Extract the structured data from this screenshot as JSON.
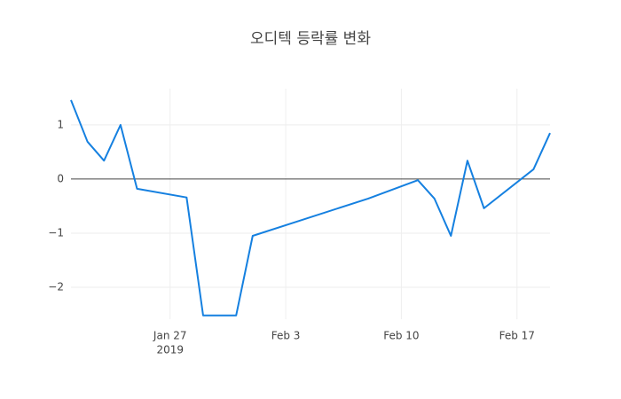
{
  "chart_data": {
    "type": "line",
    "title": "오디텍 등락률 변화",
    "x": [
      "2019-01-21",
      "2019-01-22",
      "2019-01-23",
      "2019-01-24",
      "2019-01-25",
      "2019-01-28",
      "2019-01-29",
      "2019-01-31",
      "2019-02-01",
      "2019-02-08",
      "2019-02-11",
      "2019-02-12",
      "2019-02-13",
      "2019-02-14",
      "2019-02-15",
      "2019-02-18",
      "2019-02-19"
    ],
    "series": [
      {
        "color": "#1580e0",
        "values": [
          1.46,
          0.69,
          0.34,
          1.0,
          -0.18,
          -0.34,
          -2.52,
          -2.52,
          -1.05,
          -0.36,
          -0.02,
          -0.36,
          -1.05,
          0.34,
          -0.54,
          0.18,
          0.85
        ]
      }
    ],
    "xlim": [
      "2019-01-21",
      "2019-02-19"
    ],
    "xticks": [
      {
        "value": "2019-01-27",
        "label": "Jan 27"
      },
      {
        "value": "2019-02-03",
        "label": "Feb 3"
      },
      {
        "value": "2019-02-10",
        "label": "Feb 10"
      },
      {
        "value": "2019-02-17",
        "label": "Feb 17"
      }
    ],
    "x_year_label": "2019",
    "ylim": [
      -2.59,
      1.67
    ],
    "yticks": [
      {
        "value": -2,
        "label": "−2"
      },
      {
        "value": -1,
        "label": "−1"
      },
      0,
      1
    ],
    "grid": true,
    "zeroline": true
  }
}
